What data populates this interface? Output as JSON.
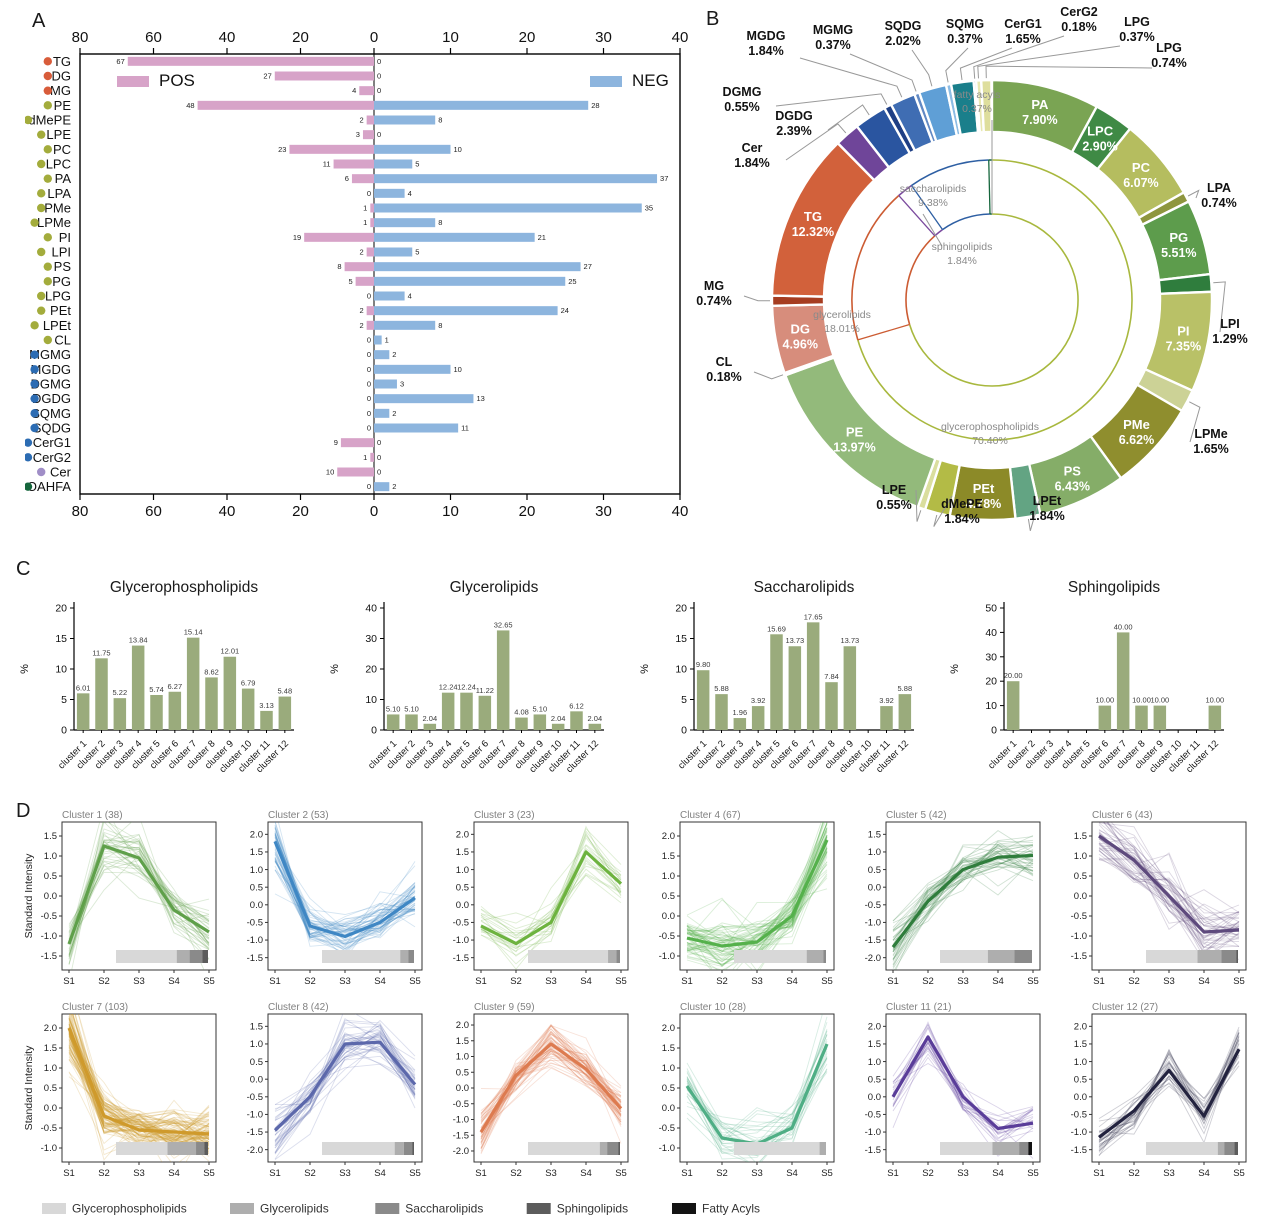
{
  "panels": {
    "a_label": "A",
    "b_label": "B",
    "c_label": "C",
    "d_label": "D"
  },
  "colors": {
    "pos_bar": "#d7a3c8",
    "neg_bar": "#8db5de",
    "bar_green": "#9aab7c",
    "dot_glycerolipid": "#d85c3a",
    "dot_glycerophospholipid": "#a3ac3c",
    "dot_saccharolipid": "#2c6cb3",
    "dot_sphingolipid": "#a08ec7",
    "dot_fattyacyl": "#15663c",
    "gray_legend": [
      "#d8d8d8",
      "#aeaeae",
      "#8a8a8a",
      "#5c5c5c",
      "#131313"
    ]
  },
  "chart_data": [
    {
      "id": "A",
      "type": "bar",
      "subtype": "diverging-horizontal",
      "legend_pos": "POS",
      "legend_neg": "NEG",
      "axis": {
        "left_ticks": [
          80,
          60,
          40,
          20
        ],
        "zero_label": "0",
        "right_ticks": [
          10,
          20,
          30,
          40
        ],
        "left_max": 80,
        "right_max": 40
      },
      "categories": [
        "TG",
        "DG",
        "MG",
        "PE",
        "dMePE",
        "LPE",
        "PC",
        "LPC",
        "PA",
        "LPA",
        "PMe",
        "LPMe",
        "PI",
        "LPI",
        "PS",
        "PG",
        "LPG",
        "PEt",
        "LPEt",
        "CL",
        "MGMG",
        "MGDG",
        "DGMG",
        "DGDG",
        "SQMG",
        "SQDG",
        "CerG1",
        "CerG2",
        "Cer",
        "OAHFA"
      ],
      "dot_groups": [
        "GL",
        "GL",
        "GL",
        "GP",
        "GP",
        "GP",
        "GP",
        "GP",
        "GP",
        "GP",
        "GP",
        "GP",
        "GP",
        "GP",
        "GP",
        "GP",
        "GP",
        "GP",
        "GP",
        "GP",
        "SA",
        "SA",
        "SA",
        "SA",
        "SA",
        "SA",
        "SA",
        "SA",
        "SP",
        "FA"
      ],
      "series": [
        {
          "name": "POS",
          "values": [
            67,
            27,
            4,
            48,
            2,
            3,
            23,
            11,
            6,
            0,
            1,
            1,
            19,
            2,
            8,
            5,
            0,
            2,
            2,
            0,
            0,
            0,
            0,
            0,
            0,
            0,
            9,
            1,
            10,
            0
          ]
        },
        {
          "name": "NEG",
          "values": [
            0,
            0,
            0,
            28,
            8,
            0,
            10,
            5,
            37,
            4,
            35,
            8,
            21,
            5,
            27,
            25,
            4,
            24,
            8,
            1,
            2,
            10,
            3,
            13,
            2,
            11,
            0,
            0,
            0,
            2
          ]
        }
      ]
    },
    {
      "id": "B",
      "type": "pie",
      "subtype": "sunburst",
      "inner_categories": [
        {
          "name": "glycerophospholipids",
          "pct": 70.4,
          "color": "#a8b83e"
        },
        {
          "name": "glycerolipids",
          "pct": 18.01,
          "color": "#cc5c33"
        },
        {
          "name": "sphingolipids",
          "pct": 1.84,
          "color": "#7b4a9e"
        },
        {
          "name": "saccharolipids",
          "pct": 9.38,
          "color": "#2e5fa3"
        },
        {
          "name": "fatty acyls",
          "pct": 0.37,
          "color": "#15663c"
        }
      ],
      "segments": [
        {
          "name": "PA",
          "pct": 7.9,
          "color": "#7aa453",
          "label": "in"
        },
        {
          "name": "LPC",
          "pct": 2.9,
          "color": "#3f8a45",
          "label": "in"
        },
        {
          "name": "PC",
          "pct": 6.07,
          "color": "#b5bd5f",
          "label": "in"
        },
        {
          "name": "LPA",
          "pct": 0.74,
          "color": "#8e963e",
          "label": "out"
        },
        {
          "name": "PG",
          "pct": 5.51,
          "color": "#5d9c4c",
          "label": "in"
        },
        {
          "name": "LPI",
          "pct": 1.29,
          "color": "#2f7d3d",
          "label": "out"
        },
        {
          "name": "PI",
          "pct": 7.35,
          "color": "#b9c167",
          "label": "in"
        },
        {
          "name": "LPMe",
          "pct": 1.65,
          "color": "#ccd296",
          "label": "out"
        },
        {
          "name": "PMe",
          "pct": 6.62,
          "color": "#8f8e2e",
          "label": "in"
        },
        {
          "name": "PS",
          "pct": 6.43,
          "color": "#85ad68",
          "label": "in"
        },
        {
          "name": "LPEt",
          "pct": 1.84,
          "color": "#63a483",
          "label": "out"
        },
        {
          "name": "PEt",
          "pct": 4.78,
          "color": "#8c8a28",
          "label": "in"
        },
        {
          "name": "dMePE",
          "pct": 1.84,
          "color": "#b3bb46",
          "label": "out"
        },
        {
          "name": "LPE",
          "pct": 0.55,
          "color": "#dade9e",
          "label": "out"
        },
        {
          "name": "PE",
          "pct": 13.97,
          "color": "#93ba7b",
          "label": "in"
        },
        {
          "name": "CL",
          "pct": 0.18,
          "color": "#d5d998",
          "label": "out"
        },
        {
          "name": "DG",
          "pct": 4.96,
          "color": "#d78d7c",
          "label": "in"
        },
        {
          "name": "MG",
          "pct": 0.74,
          "color": "#a63d21",
          "label": "out"
        },
        {
          "name": "TG",
          "pct": 12.32,
          "color": "#d2613b",
          "label": "in"
        },
        {
          "name": "Cer",
          "pct": 1.84,
          "color": "#6f4599",
          "label": "out"
        },
        {
          "name": "DGDG",
          "pct": 2.39,
          "color": "#2a55a0",
          "label": "out"
        },
        {
          "name": "DGMG",
          "pct": 0.55,
          "color": "#1f3f85",
          "label": "out"
        },
        {
          "name": "MGDG",
          "pct": 1.84,
          "color": "#3f6db3",
          "label": "out"
        },
        {
          "name": "MGMG",
          "pct": 0.37,
          "color": "#6189c4",
          "label": "out"
        },
        {
          "name": "SQDG",
          "pct": 2.02,
          "color": "#5f9fd6",
          "label": "out"
        },
        {
          "name": "SQMG",
          "pct": 0.37,
          "color": "#8cbce4",
          "label": "out"
        },
        {
          "name": "CerG1",
          "pct": 1.65,
          "color": "#1a7f8b",
          "label": "out"
        },
        {
          "name": "CerG2",
          "pct": 0.18,
          "color": "#143a70",
          "label": "out"
        },
        {
          "name": "LPG",
          "pct": 0.37,
          "color": "#e9e8b2",
          "label": "out"
        },
        {
          "name": "LPG",
          "pct": 0.74,
          "color": "#dede9d",
          "label": "out"
        }
      ]
    },
    {
      "id": "C",
      "type": "bar",
      "ylabel": "%",
      "categories": [
        "cluster 1",
        "cluster 2",
        "cluster 3",
        "cluster 4",
        "cluster 5",
        "cluster 6",
        "cluster 7",
        "cluster 8",
        "cluster 9",
        "cluster 10",
        "cluster 11",
        "cluster 12"
      ],
      "charts": [
        {
          "title": "Glycerophospholipids",
          "ylim": [
            0,
            20
          ],
          "yticks": [
            0,
            5,
            10,
            15,
            20
          ],
          "values": [
            6.01,
            11.75,
            5.22,
            13.84,
            5.74,
            6.27,
            15.14,
            8.62,
            12.01,
            6.79,
            3.13,
            5.48
          ]
        },
        {
          "title": "Glycerolipids",
          "ylim": [
            0,
            40
          ],
          "yticks": [
            0,
            10,
            20,
            30,
            40
          ],
          "values": [
            5.1,
            5.1,
            2.04,
            12.24,
            12.24,
            11.22,
            32.65,
            4.08,
            5.1,
            2.04,
            6.12,
            2.04
          ]
        },
        {
          "title": "Saccharolipids",
          "ylim": [
            0,
            20
          ],
          "yticks": [
            0,
            5,
            10,
            15,
            20
          ],
          "values": [
            9.8,
            5.88,
            1.96,
            3.92,
            15.69,
            13.73,
            17.65,
            7.84,
            13.73,
            0,
            3.92,
            5.88
          ]
        },
        {
          "title": "Sphingolipids",
          "ylim": [
            0,
            50
          ],
          "yticks": [
            0,
            10,
            20,
            30,
            40,
            50
          ],
          "values": [
            20.0,
            0,
            0,
            0,
            0,
            10.0,
            40.0,
            10.0,
            10.0,
            0,
            0,
            10.0
          ]
        }
      ]
    },
    {
      "id": "D",
      "type": "line",
      "ylabel": "Standard Intensity",
      "x": [
        "S1",
        "S2",
        "S3",
        "S4",
        "S5"
      ],
      "legend": [
        {
          "label": "Glycerophospholipids",
          "color": "#d8d8d8"
        },
        {
          "label": "Glycerolipids",
          "color": "#aeaeae"
        },
        {
          "label": "Saccharolipids",
          "color": "#8a8a8a"
        },
        {
          "label": "Sphingolipids",
          "color": "#5c5c5c"
        },
        {
          "label": "Fatty Acyls",
          "color": "#131313"
        }
      ],
      "subplots": [
        {
          "title": "Cluster 1 (38)",
          "n": 38,
          "color": "#5fa04a",
          "mean": [
            -1.2,
            1.25,
            0.95,
            -0.35,
            -0.9
          ],
          "ymin": -1.5,
          "ymax": 1.5,
          "composition": [
            0.66,
            0.14,
            0.14,
            0.06,
            0
          ]
        },
        {
          "title": "Cluster 2 (53)",
          "n": 53,
          "color": "#3f87c4",
          "mean": [
            1.8,
            -0.6,
            -0.9,
            -0.5,
            0.2
          ],
          "ymin": -1.5,
          "ymax": 2.0,
          "composition": [
            0.85,
            0.09,
            0.06,
            0,
            0
          ]
        },
        {
          "title": "Cluster 3 (23)",
          "n": 23,
          "color": "#6db33f",
          "mean": [
            -0.6,
            -1.1,
            -0.5,
            1.5,
            0.6
          ],
          "ymin": -1.5,
          "ymax": 2.0,
          "composition": [
            0.87,
            0.09,
            0.04,
            0,
            0
          ]
        },
        {
          "title": "Cluster 4 (67)",
          "n": 67,
          "color": "#55b14c",
          "mean": [
            -0.55,
            -0.75,
            -0.65,
            0.0,
            1.9
          ],
          "ymin": -1.0,
          "ymax": 2.0,
          "composition": [
            0.79,
            0.18,
            0.03,
            0,
            0
          ]
        },
        {
          "title": "Cluster 5 (42)",
          "n": 42,
          "color": "#2f7d3c",
          "mean": [
            -1.7,
            -0.4,
            0.5,
            0.85,
            0.9
          ],
          "ymin": -2.0,
          "ymax": 1.5,
          "composition": [
            0.52,
            0.29,
            0.19,
            0,
            0
          ]
        },
        {
          "title": "Cluster 6 (43)",
          "n": 43,
          "color": "#5e4a7d",
          "mean": [
            1.5,
            0.9,
            0.0,
            -0.9,
            -0.85
          ],
          "ymin": -1.5,
          "ymax": 1.5,
          "composition": [
            0.56,
            0.26,
            0.16,
            0.02,
            0
          ]
        },
        {
          "title": "Cluster 7 (103)",
          "n": 103,
          "color": "#cf9a2c",
          "mean": [
            2.0,
            -0.2,
            -0.55,
            -0.6,
            -0.65
          ],
          "ymin": -1.0,
          "ymax": 2.0,
          "composition": [
            0.56,
            0.31,
            0.09,
            0.04,
            0
          ]
        },
        {
          "title": "Cluster 8 (42)",
          "n": 42,
          "color": "#5c68ab",
          "mean": [
            -1.45,
            -0.5,
            1.0,
            1.05,
            -0.15
          ],
          "ymin": -2.0,
          "ymax": 1.5,
          "composition": [
            0.79,
            0.1,
            0.09,
            0.02,
            0
          ]
        },
        {
          "title": "Cluster 9 (59)",
          "n": 59,
          "color": "#dd7b50",
          "mean": [
            -1.4,
            0.4,
            1.4,
            0.6,
            -0.65
          ],
          "ymin": -2.0,
          "ymax": 2.0,
          "composition": [
            0.78,
            0.08,
            0.12,
            0.02,
            0
          ]
        },
        {
          "title": "Cluster 10 (28)",
          "n": 28,
          "color": "#4fae85",
          "mean": [
            0.55,
            -0.75,
            -0.9,
            -0.5,
            1.6
          ],
          "ymin": -1.0,
          "ymax": 2.0,
          "composition": [
            0.93,
            0.07,
            0,
            0,
            0
          ]
        },
        {
          "title": "Cluster 11 (21)",
          "n": 21,
          "color": "#5a3d99",
          "mean": [
            0.0,
            1.7,
            0.0,
            -0.9,
            -0.75
          ],
          "ymin": -1.5,
          "ymax": 2.0,
          "composition": [
            0.57,
            0.29,
            0.1,
            0,
            0.04
          ]
        },
        {
          "title": "Cluster 12 (27)",
          "n": 27,
          "color": "#23233f",
          "mean": [
            -1.15,
            -0.4,
            0.75,
            -0.55,
            1.35
          ],
          "ymin": -1.5,
          "ymax": 2.0,
          "composition": [
            0.78,
            0.07,
            0.11,
            0.04,
            0
          ]
        }
      ]
    }
  ]
}
